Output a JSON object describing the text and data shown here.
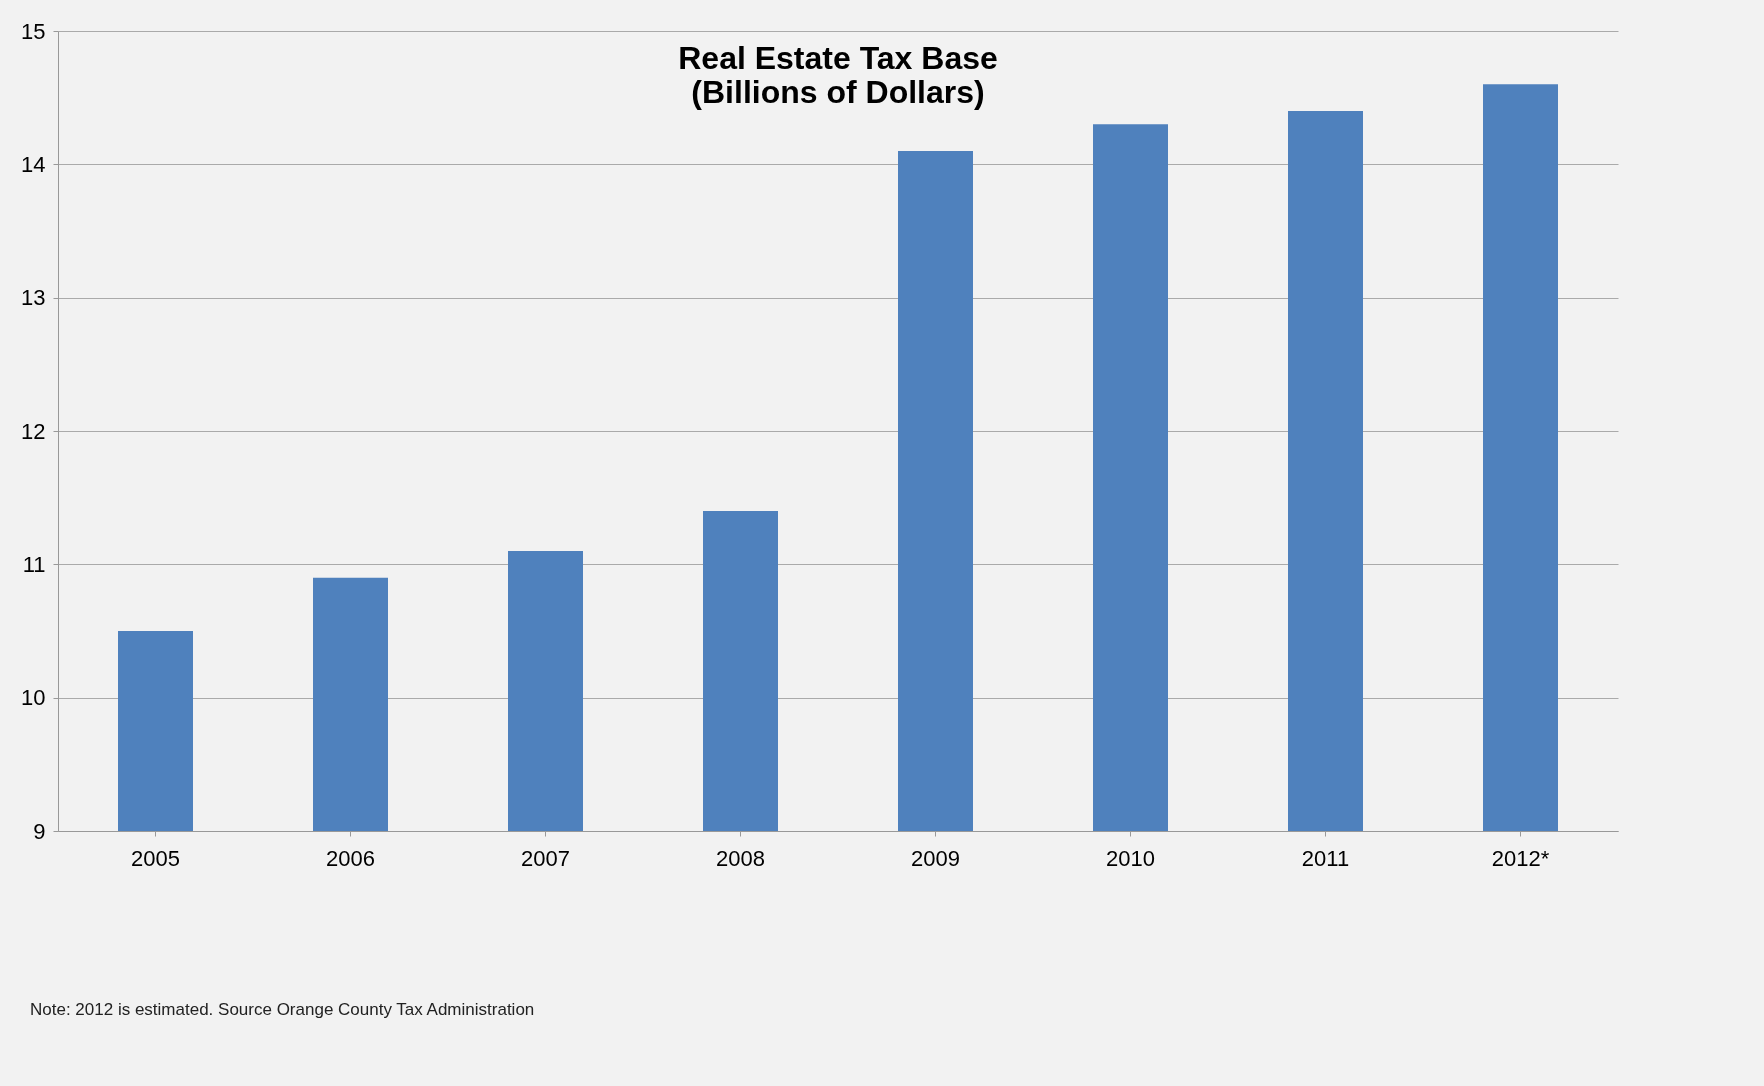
{
  "chart_data": {
    "type": "bar",
    "title": [
      "Real Estate Tax Base",
      "(Billions of Dollars)"
    ],
    "categories": [
      "2005",
      "2006",
      "2007",
      "2008",
      "2009",
      "2010",
      "2011",
      "2012*"
    ],
    "values": [
      10.5,
      10.9,
      11.1,
      11.4,
      14.1,
      14.3,
      14.4,
      14.6
    ],
    "color": "#4f81bd",
    "ylim": [
      9,
      15
    ],
    "yticks": [
      9,
      10,
      11,
      12,
      13,
      14,
      15
    ],
    "grid": "y",
    "annotations": [
      "Note:  2012 is estimated.   Source Orange County Tax Administration"
    ]
  }
}
